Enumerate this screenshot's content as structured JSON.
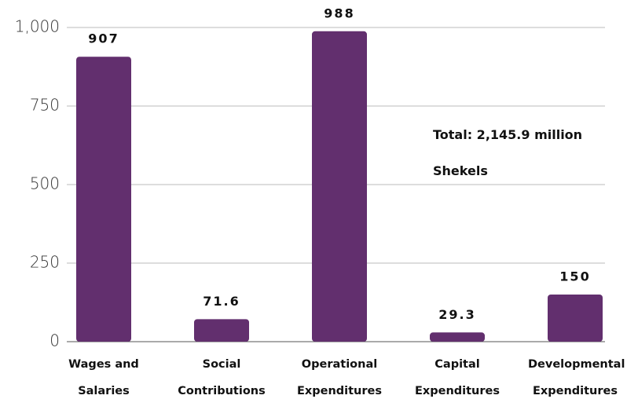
{
  "chart_data": {
    "type": "bar",
    "categories": [
      "Wages and Salaries",
      "Social Contributions",
      "Operational Expenditures",
      "Capital Expenditures",
      "Developmental Expenditures"
    ],
    "values": [
      907,
      71.6,
      988,
      29.3,
      150
    ],
    "color": "#622f6e",
    "ylim": [
      0,
      1000
    ],
    "yticks": [
      0,
      250,
      500,
      750,
      {
        "value": 1000,
        "label": "1,000"
      }
    ],
    "grid": true,
    "annotation": "Total: 2,145.9 million Shekels"
  }
}
